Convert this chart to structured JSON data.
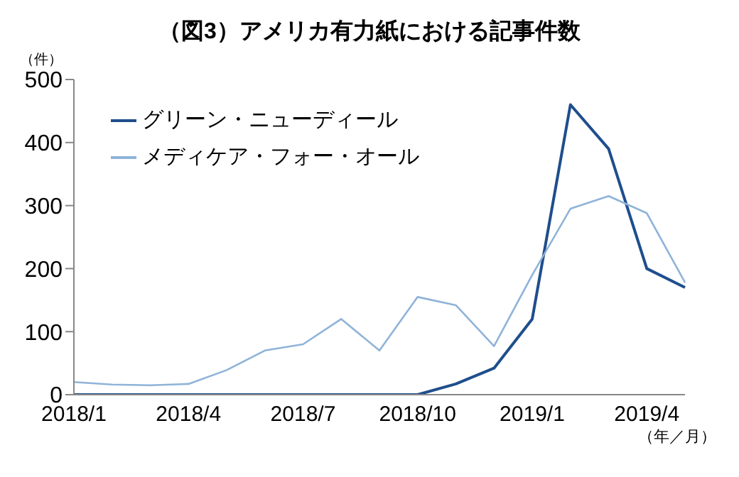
{
  "chart_data": {
    "type": "line",
    "title": "（図3）アメリカ有力紙における記事件数",
    "ylabel": "（件）",
    "xlabel": "（年／月）",
    "categories": [
      "2018/1",
      null,
      null,
      "2018/4",
      null,
      null,
      "2018/7",
      null,
      null,
      "2018/10",
      null,
      null,
      "2019/1",
      null,
      null,
      "2019/4",
      null
    ],
    "series": [
      {
        "name": "グリーン・ニューディール",
        "color": "#1f4e8c",
        "values": [
          0,
          0,
          0,
          0,
          0,
          0,
          0,
          0,
          0,
          0,
          17,
          42,
          120,
          460,
          390,
          200,
          170
        ]
      },
      {
        "name": "メディケア・フォー・オール",
        "color": "#8fb3d9",
        "values": [
          20,
          16,
          15,
          17,
          39,
          70,
          80,
          120,
          70,
          155,
          142,
          77,
          190,
          295,
          315,
          288,
          178
        ]
      }
    ],
    "ylim": [
      0,
      500
    ],
    "yticks": [
      0,
      100,
      200,
      300,
      400,
      500
    ],
    "grid": false,
    "legend": "top left",
    "marker": "none",
    "line_style": "solid"
  }
}
